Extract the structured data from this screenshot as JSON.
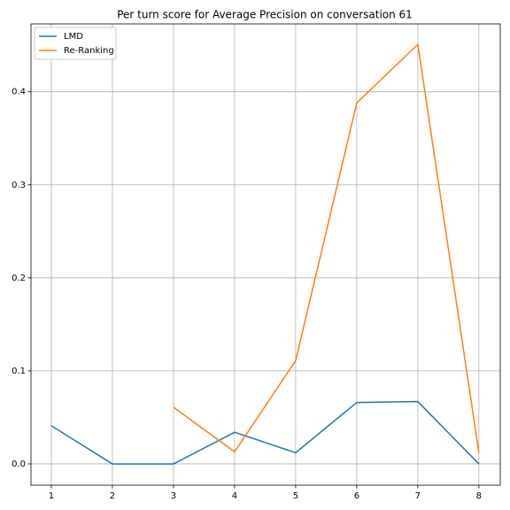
{
  "chart_data": {
    "type": "line",
    "title": "Per turn score for Average Precision on conversation 61",
    "x": [
      1,
      2,
      3,
      4,
      5,
      6,
      7,
      8
    ],
    "series": [
      {
        "name": "LMD",
        "color": "#1f77b4",
        "values": [
          0.041,
          0,
          0,
          0.034,
          0.012,
          0.066,
          0.067,
          0
        ]
      },
      {
        "name": "Re-Ranking",
        "color": "#ff7f0e",
        "values": [
          null,
          null,
          0.061,
          0.013,
          0.111,
          0.388,
          0.451,
          0.012
        ]
      }
    ],
    "xlim": [
      0.667,
      8.35
    ],
    "xticks": [
      1,
      2,
      3,
      4,
      5,
      6,
      7,
      8
    ],
    "ylim": [
      -0.0229,
      0.473
    ],
    "yticks": [
      {
        "value": 0,
        "label": "0.0"
      },
      0.1,
      0.2,
      0.3,
      0.4
    ],
    "grid": true,
    "legend": "upper left"
  }
}
